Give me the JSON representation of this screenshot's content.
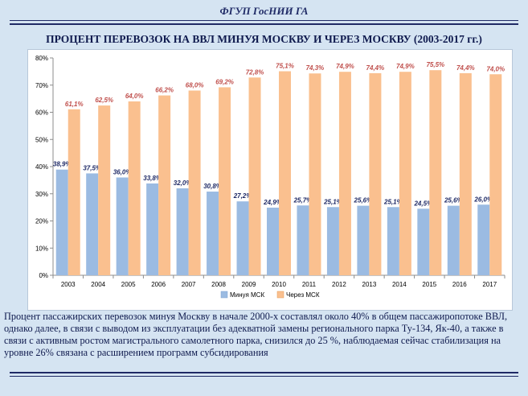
{
  "header": {
    "org": "ФГУП ГосНИИ ГА"
  },
  "chart_title": "ПРОЦЕНТ  ПЕРЕВОЗОК  НА ВВЛ МИНУЯ МОСКВУ И ЧЕРЕЗ МОСКВУ (2003-2017 гг.)",
  "chart_data": {
    "type": "bar",
    "categories": [
      "2003",
      "2004",
      "2005",
      "2006",
      "2007",
      "2008",
      "2009",
      "2010",
      "2011",
      "2012",
      "2013",
      "2014",
      "2015",
      "2016",
      "2017"
    ],
    "series": [
      {
        "name": "Минуя МСК",
        "values": [
          38.9,
          37.5,
          36.0,
          33.8,
          32.0,
          30.8,
          27.2,
          24.9,
          25.7,
          25.1,
          25.6,
          25.1,
          24.5,
          25.6,
          26.0
        ],
        "labels": [
          "38,9%",
          "37,5%",
          "36,0%",
          "33,8%",
          "32,0%",
          "30,8%",
          "27,2%",
          "24,9%",
          "25,7%",
          "25,1%",
          "25,6%",
          "25,1%",
          "24,5%",
          "25,6%",
          "26,0%"
        ],
        "color": "#9bbbe2"
      },
      {
        "name": "Через МСК",
        "values": [
          61.1,
          62.5,
          64.0,
          66.2,
          68.0,
          69.2,
          72.8,
          75.1,
          74.3,
          74.9,
          74.4,
          74.9,
          75.5,
          74.4,
          74.0
        ],
        "labels": [
          "61,1%",
          "62,5%",
          "64,0%",
          "66,2%",
          "68,0%",
          "69,2%",
          "72,8%",
          "75,1%",
          "74,3%",
          "74,9%",
          "74,4%",
          "74,9%",
          "75,5%",
          "74,4%",
          "74,0%"
        ],
        "color": "#fac08f"
      }
    ],
    "ylim": [
      0,
      80
    ],
    "yticks": [
      0,
      10,
      20,
      30,
      40,
      50,
      60,
      70,
      80
    ],
    "ytick_labels": [
      "0%",
      "10%",
      "20%",
      "30%",
      "40%",
      "50%",
      "60%",
      "70%",
      "80%"
    ],
    "grid": false,
    "legend_position": "bottom",
    "label_colors": {
      "Минуя МСК": "#1f2a66",
      "Через МСК": "#c0504d"
    }
  },
  "caption": "Процент пассажирских перевозок минуя Москву в начале 2000-х  составлял около 40% в общем пассажиропотоке ВВЛ, однако далее, в связи с выводом из эксплуатации без адекватной замены регионального парка Ту-134, Як-40, а также в связи с активным ростом магистрального самолетного парка, снизился до 25 %, наблюдаемая сейчас стабилизация на уровне 26% связана с расширением программ субсидирования"
}
